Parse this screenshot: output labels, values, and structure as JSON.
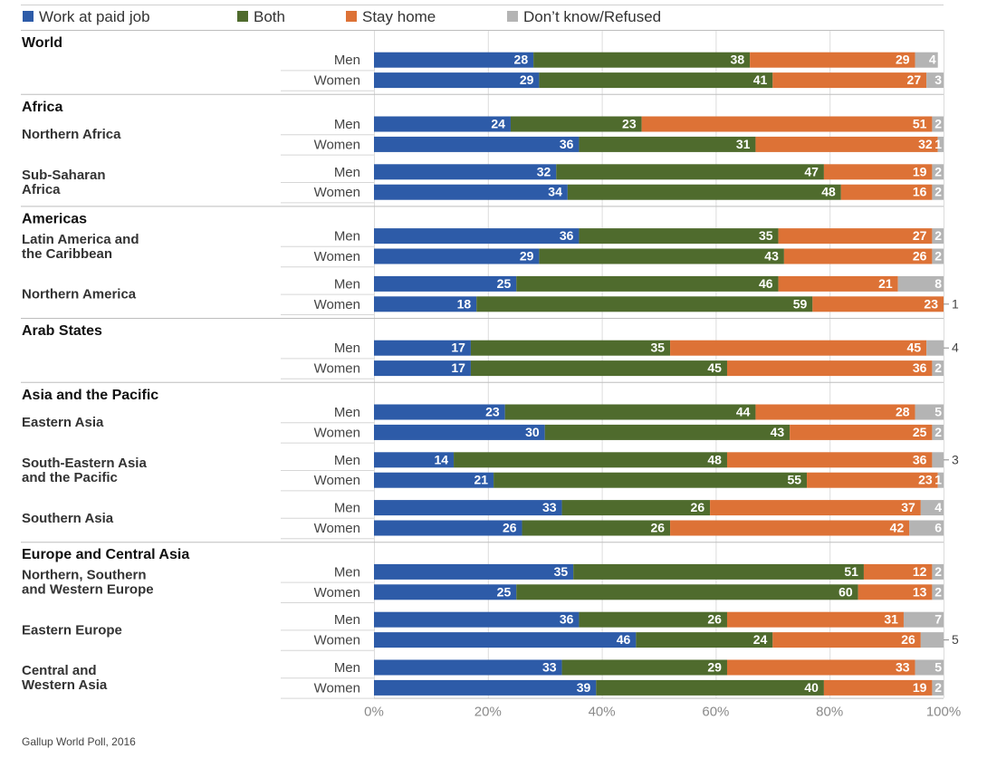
{
  "source": "Gallup World Poll, 2016",
  "chart_data": {
    "type": "bar",
    "orientation": "horizontal",
    "stacked": true,
    "normalized": true,
    "xlim": [
      0,
      100
    ],
    "xticks": [
      "0%",
      "20%",
      "40%",
      "60%",
      "80%",
      "100%"
    ],
    "legend_position": "top-left",
    "segments": [
      {
        "name": "Work at paid job",
        "color": "#2d5ba8"
      },
      {
        "name": "Both",
        "color": "#4f6b2d"
      },
      {
        "name": "Stay home",
        "color": "#dd7236"
      },
      {
        "name": "Don’t know/Refused",
        "color": "#b4b4b4"
      }
    ],
    "groups": [
      {
        "title": "World",
        "regions": [
          {
            "name": [],
            "rows": [
              {
                "label": "Men",
                "values": [
                  28,
                  38,
                  29,
                  4
                ]
              },
              {
                "label": "Women",
                "values": [
                  29,
                  41,
                  27,
                  3
                ]
              }
            ]
          }
        ]
      },
      {
        "title": "Africa",
        "regions": [
          {
            "name": [
              "Northern Africa"
            ],
            "rows": [
              {
                "label": "Men",
                "values": [
                  24,
                  23,
                  51,
                  2
                ]
              },
              {
                "label": "Women",
                "values": [
                  36,
                  31,
                  32,
                  1
                ]
              }
            ]
          },
          {
            "name": [
              "Sub-Saharan",
              "Africa"
            ],
            "rows": [
              {
                "label": "Men",
                "values": [
                  32,
                  47,
                  19,
                  2
                ]
              },
              {
                "label": "Women",
                "values": [
                  34,
                  48,
                  16,
                  2
                ]
              }
            ]
          }
        ]
      },
      {
        "title": "Americas",
        "regions": [
          {
            "name": [
              "Latin America and",
              "the Caribbean"
            ],
            "rows": [
              {
                "label": "Men",
                "values": [
                  36,
                  35,
                  27,
                  2
                ]
              },
              {
                "label": "Women",
                "values": [
                  29,
                  43,
                  26,
                  2
                ]
              }
            ]
          },
          {
            "name": [
              "Northern America"
            ],
            "rows": [
              {
                "label": "Men",
                "values": [
                  25,
                  46,
                  21,
                  8
                ]
              },
              {
                "label": "Women",
                "values": [
                  18,
                  59,
                  23,
                  1
                ]
              }
            ]
          }
        ]
      },
      {
        "title": "Arab States",
        "regions": [
          {
            "name": [],
            "rows": [
              {
                "label": "Men",
                "values": [
                  17,
                  35,
                  45,
                  4
                ]
              },
              {
                "label": "Women",
                "values": [
                  17,
                  45,
                  36,
                  2
                ]
              }
            ]
          }
        ]
      },
      {
        "title": "Asia and the Pacific",
        "regions": [
          {
            "name": [
              "Eastern Asia"
            ],
            "rows": [
              {
                "label": "Men",
                "values": [
                  23,
                  44,
                  28,
                  5
                ]
              },
              {
                "label": "Women",
                "values": [
                  30,
                  43,
                  25,
                  2
                ]
              }
            ]
          },
          {
            "name": [
              "South-Eastern Asia",
              "and the Pacific"
            ],
            "rows": [
              {
                "label": "Men",
                "values": [
                  14,
                  48,
                  36,
                  3
                ]
              },
              {
                "label": "Women",
                "values": [
                  21,
                  55,
                  23,
                  1
                ]
              }
            ]
          },
          {
            "name": [
              "Southern Asia"
            ],
            "rows": [
              {
                "label": "Men",
                "values": [
                  33,
                  26,
                  37,
                  4
                ]
              },
              {
                "label": "Women",
                "values": [
                  26,
                  26,
                  42,
                  6
                ]
              }
            ]
          }
        ]
      },
      {
        "title": "Europe and Central Asia",
        "regions": [
          {
            "name": [
              "Northern, Southern",
              "and Western Europe"
            ],
            "rows": [
              {
                "label": "Men",
                "values": [
                  35,
                  51,
                  12,
                  2
                ]
              },
              {
                "label": "Women",
                "values": [
                  25,
                  60,
                  13,
                  2
                ]
              }
            ]
          },
          {
            "name": [
              "Eastern Europe"
            ],
            "rows": [
              {
                "label": "Men",
                "values": [
                  36,
                  26,
                  31,
                  7
                ]
              },
              {
                "label": "Women",
                "values": [
                  46,
                  24,
                  26,
                  5
                ]
              }
            ]
          },
          {
            "name": [
              "Central and",
              "Western Asia"
            ],
            "rows": [
              {
                "label": "Men",
                "values": [
                  33,
                  29,
                  33,
                  5
                ]
              },
              {
                "label": "Women",
                "values": [
                  39,
                  40,
                  19,
                  2
                ]
              }
            ]
          }
        ]
      }
    ]
  }
}
